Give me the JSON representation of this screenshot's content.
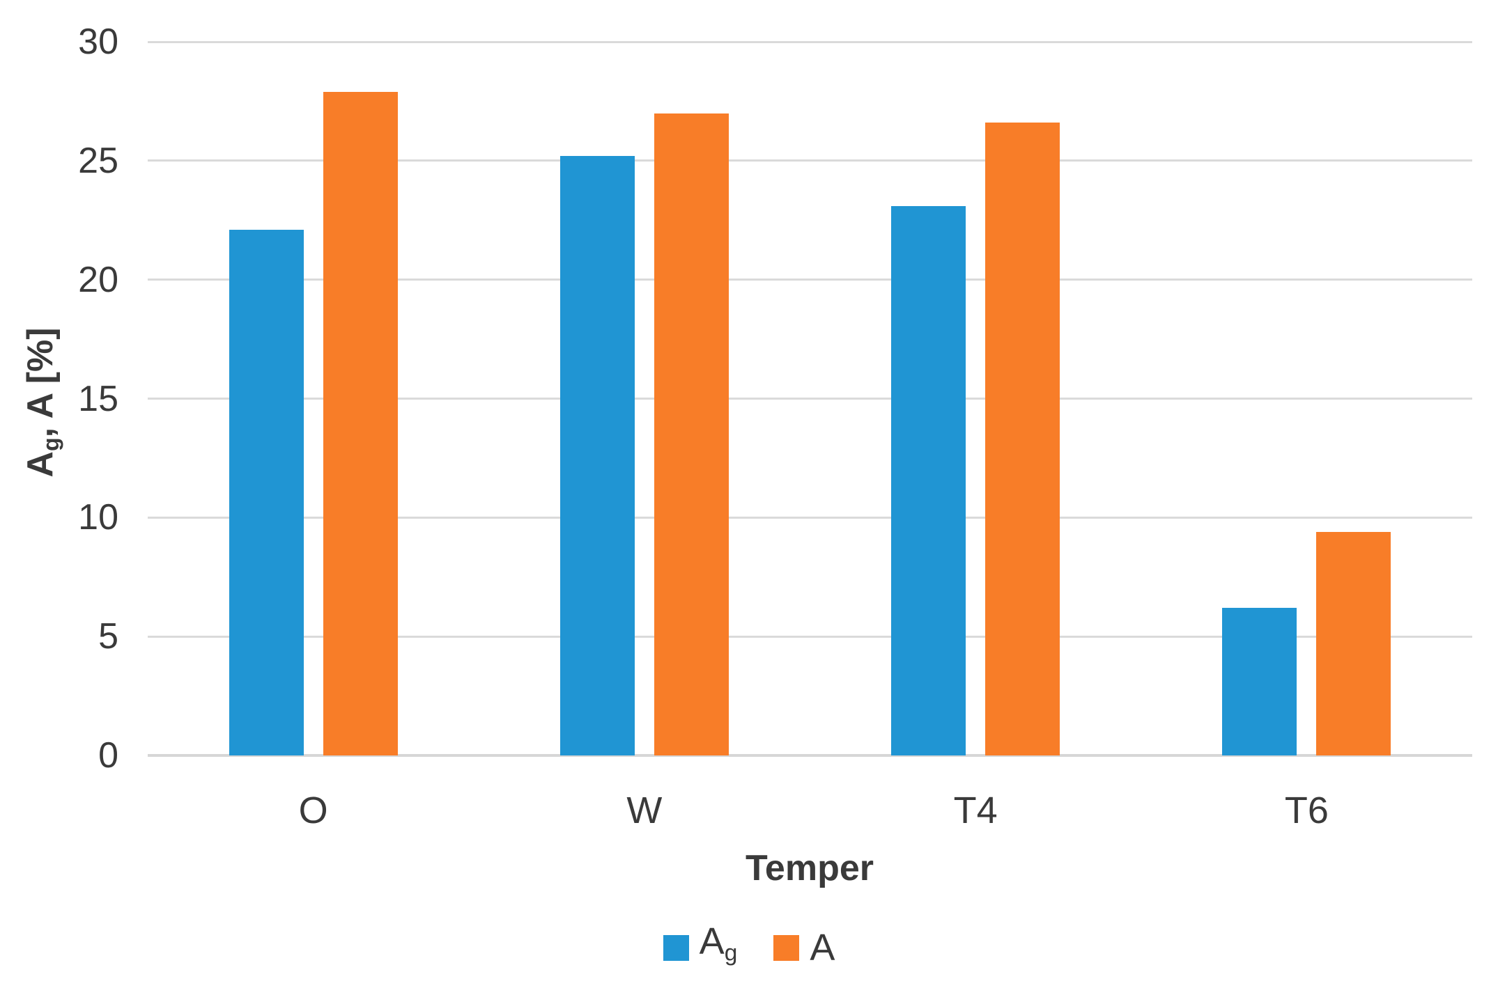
{
  "chart_data": {
    "type": "bar",
    "categories": [
      "O",
      "W",
      "T4",
      "T6"
    ],
    "series": [
      {
        "name": "Ag",
        "color": "#2095d3",
        "values": [
          22.1,
          25.2,
          23.1,
          6.2
        ]
      },
      {
        "name": "A",
        "color": "#f87d28",
        "values": [
          27.9,
          27.0,
          26.6,
          9.4
        ]
      }
    ],
    "title": "",
    "xlabel": "Temper",
    "ylabel": "Ag, A [%]",
    "ylabel_parts": {
      "base": "A",
      "sub": "g",
      "rest": ", A [%]"
    },
    "ylim": [
      0,
      30
    ],
    "yticks": [
      0,
      5,
      10,
      15,
      20,
      25,
      30
    ],
    "grid": "horizontal",
    "legend_position": "bottom",
    "legend_items": [
      {
        "base": "A",
        "sub": "g",
        "series": "Ag"
      },
      {
        "base": "A",
        "sub": "",
        "series": "A"
      }
    ]
  },
  "colors": {
    "background": "#ffffff",
    "gridline": "#dadada",
    "axis_line": "#d6d6d6",
    "text": "#3a3a3a",
    "series_blue": "#2095d3",
    "series_orange": "#f87d28"
  }
}
